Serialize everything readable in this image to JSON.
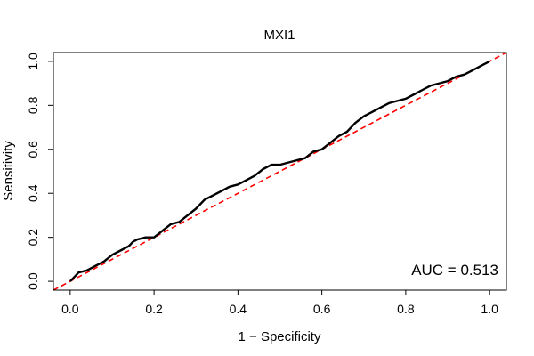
{
  "chart_data": {
    "type": "line",
    "title": "MXI1",
    "xlabel": "1 − Specificity",
    "ylabel": "Sensitivity",
    "xlim": [
      -0.04,
      1.04
    ],
    "ylim": [
      -0.04,
      1.04
    ],
    "x_ticks": [
      "0.0",
      "0.2",
      "0.4",
      "0.6",
      "0.8",
      "1.0"
    ],
    "y_ticks": [
      "0.0",
      "0.2",
      "0.4",
      "0.6",
      "0.8",
      "1.0"
    ],
    "annotation": "AUC = 0.513",
    "grid": false,
    "series": [
      {
        "color": "#000000",
        "style": "solid",
        "x": [
          0.0,
          0.01,
          0.02,
          0.04,
          0.05,
          0.06,
          0.08,
          0.1,
          0.12,
          0.14,
          0.15,
          0.16,
          0.18,
          0.2,
          0.22,
          0.24,
          0.26,
          0.28,
          0.3,
          0.32,
          0.34,
          0.36,
          0.38,
          0.4,
          0.42,
          0.44,
          0.46,
          0.48,
          0.5,
          0.52,
          0.54,
          0.56,
          0.58,
          0.6,
          0.62,
          0.64,
          0.66,
          0.68,
          0.7,
          0.72,
          0.74,
          0.76,
          0.78,
          0.8,
          0.82,
          0.84,
          0.86,
          0.88,
          0.9,
          0.92,
          0.94,
          0.96,
          0.98,
          1.0
        ],
        "y": [
          0.0,
          0.02,
          0.04,
          0.05,
          0.06,
          0.07,
          0.09,
          0.12,
          0.14,
          0.16,
          0.18,
          0.19,
          0.2,
          0.2,
          0.23,
          0.26,
          0.27,
          0.3,
          0.33,
          0.37,
          0.39,
          0.41,
          0.43,
          0.44,
          0.46,
          0.48,
          0.51,
          0.53,
          0.53,
          0.54,
          0.55,
          0.56,
          0.59,
          0.6,
          0.63,
          0.66,
          0.68,
          0.72,
          0.75,
          0.77,
          0.79,
          0.81,
          0.82,
          0.83,
          0.85,
          0.87,
          0.89,
          0.9,
          0.91,
          0.93,
          0.94,
          0.96,
          0.98,
          1.0
        ]
      },
      {
        "color": "#ff0000",
        "style": "dashed",
        "x": [
          -0.04,
          1.04
        ],
        "y": [
          -0.04,
          1.04
        ]
      }
    ]
  }
}
